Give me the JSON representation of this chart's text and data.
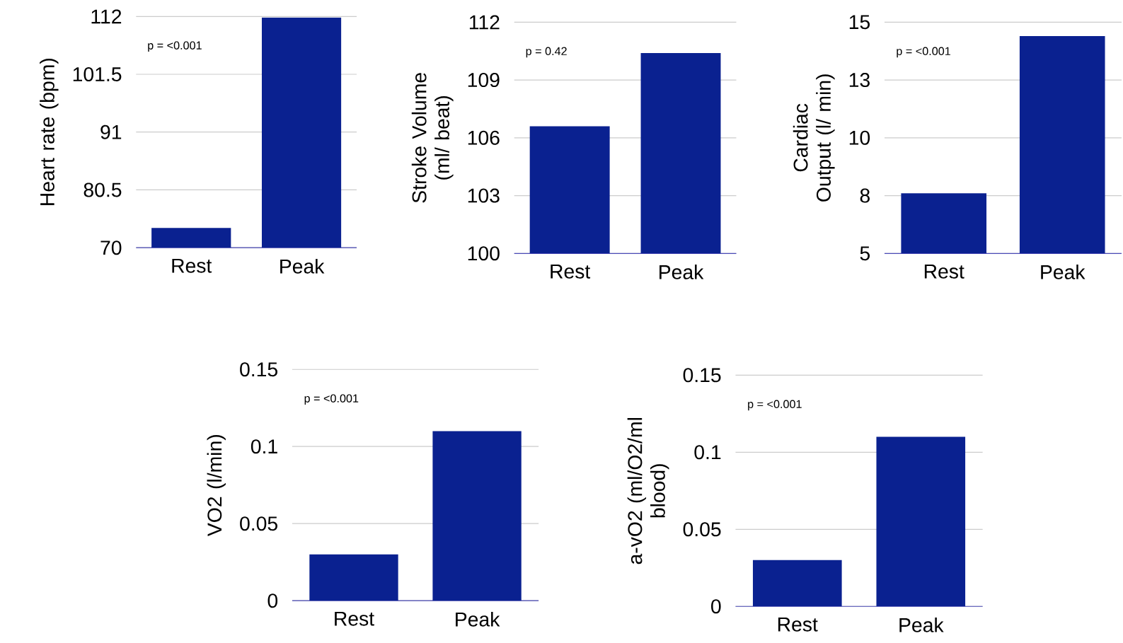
{
  "chart_data": [
    {
      "type": "bar",
      "ylabel": "Heart rate (bpm)",
      "categories": [
        "Rest",
        "Peak"
      ],
      "values": [
        73.6,
        111.8
      ],
      "color": "#0a2190",
      "ylim": [
        70,
        112
      ],
      "yticks": [
        70,
        80.5,
        91,
        101.5,
        112
      ],
      "grid": "y",
      "annotations": [
        "p = <0.001"
      ]
    },
    {
      "type": "bar",
      "ylabel": "Stroke Volume (ml/ beat)",
      "categories": [
        "Rest",
        "Peak"
      ],
      "values": [
        106.6,
        110.4
      ],
      "color": "#0a2190",
      "ylim": [
        100,
        112
      ],
      "yticks": [
        100,
        103,
        106,
        109,
        112
      ],
      "grid": "y",
      "annotations": [
        "p = 0.42"
      ]
    },
    {
      "type": "bar",
      "ylabel": "Cardiac Output (l/ min)",
      "categories": [
        "Rest",
        "Peak"
      ],
      "values": [
        7.6,
        14.4
      ],
      "color": "#0a2190",
      "ylim": [
        5,
        15
      ],
      "yticks": [
        5,
        {
          "value": 7.5,
          "label": "8"
        },
        10,
        {
          "value": 12.5,
          "label": "13"
        },
        15
      ],
      "grid": "y",
      "annotations": [
        "p = <0.001"
      ]
    },
    {
      "type": "bar",
      "ylabel": "VO2 (l/min)",
      "categories": [
        "Rest",
        "Peak"
      ],
      "values": [
        0.03,
        0.11
      ],
      "color": "#0a2190",
      "ylim": [
        0,
        0.15
      ],
      "yticks": [
        0,
        0.05,
        0.1,
        0.15
      ],
      "grid": "y",
      "annotations": [
        "p = <0.001"
      ]
    },
    {
      "type": "bar",
      "ylabel": "a-vO2 (ml/O2/ml blood)",
      "categories": [
        "Rest",
        "Peak"
      ],
      "values": [
        0.03,
        0.11
      ],
      "color": "#0a2190",
      "ylim": [
        0,
        0.15
      ],
      "yticks": [
        0,
        0.05,
        0.1,
        0.15
      ],
      "grid": "y",
      "annotations": [
        "p = <0.001"
      ]
    }
  ]
}
